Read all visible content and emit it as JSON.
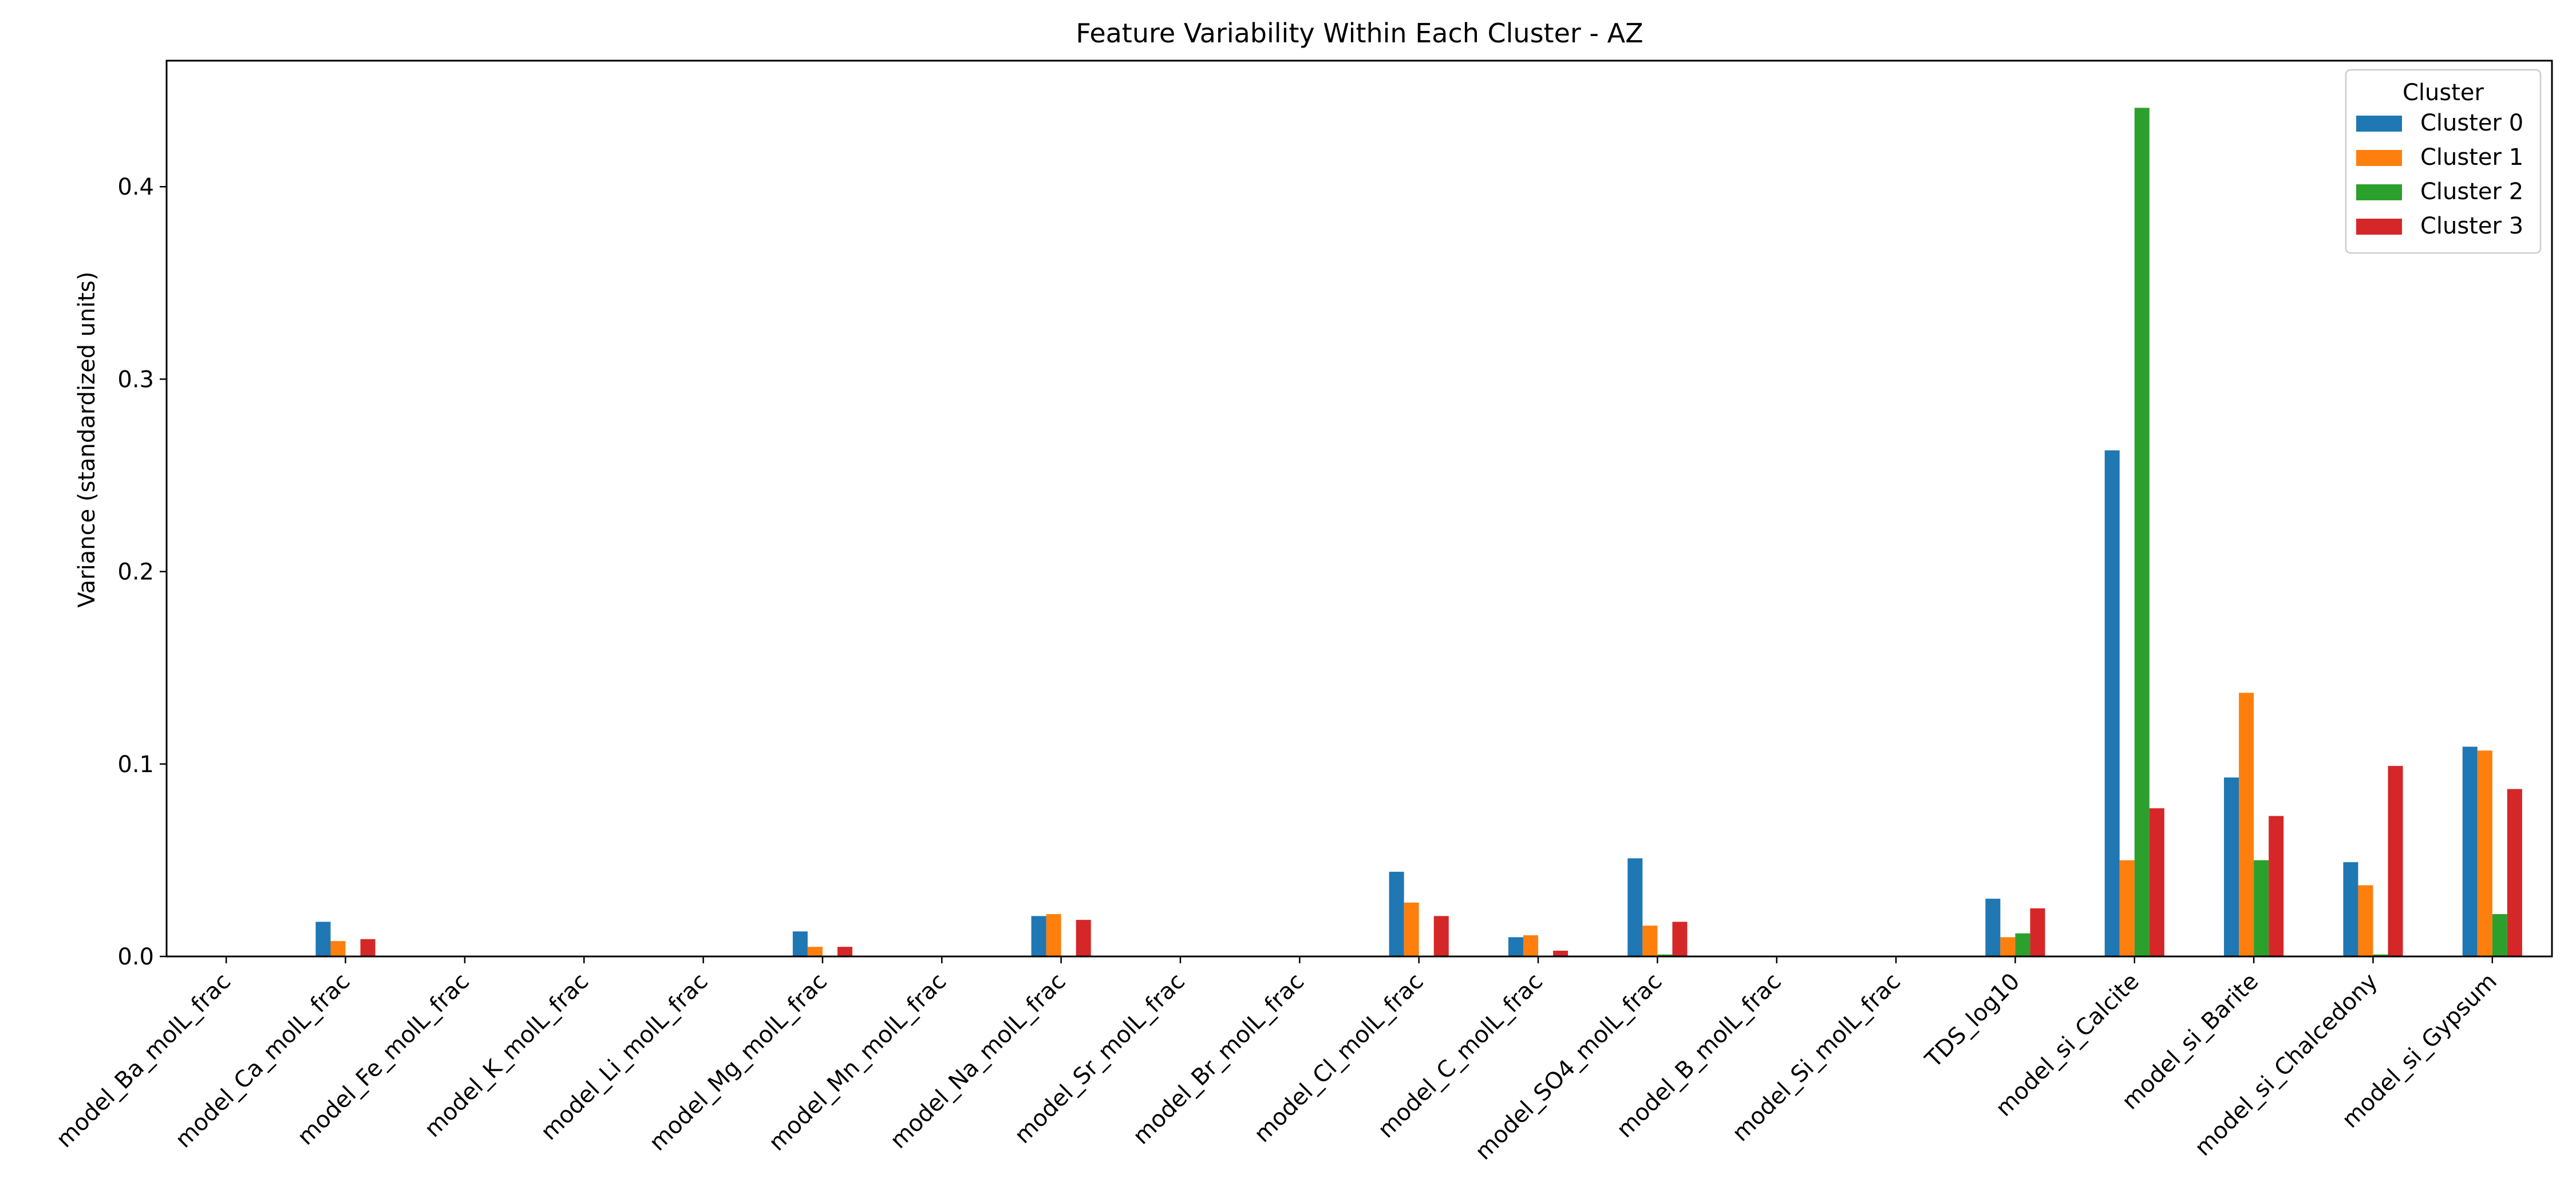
{
  "chart_data": {
    "type": "bar",
    "title": "Feature Variability Within Each Cluster - AZ",
    "xlabel": "",
    "ylabel": "Variance (standardized units)",
    "ylim": [
      0,
      0.4655
    ],
    "yticks": [
      0.0,
      0.1,
      0.2,
      0.3,
      0.4
    ],
    "ytick_labels": [
      "0.0",
      "0.1",
      "0.2",
      "0.3",
      "0.4"
    ],
    "grid": false,
    "legend": {
      "title": "Cluster",
      "placement": "top-right"
    },
    "categories": [
      "model_Ba_molL_frac",
      "model_Ca_molL_frac",
      "model_Fe_molL_frac",
      "model_K_molL_frac",
      "model_Li_molL_frac",
      "model_Mg_molL_frac",
      "model_Mn_molL_frac",
      "model_Na_molL_frac",
      "model_Sr_molL_frac",
      "model_Br_molL_frac",
      "model_Cl_molL_frac",
      "model_C_molL_frac",
      "model_SO4_molL_frac",
      "model_B_molL_frac",
      "model_Si_molL_frac",
      "TDS_log10",
      "model_si_Calcite",
      "model_si_Barite",
      "model_si_Chalcedony",
      "model_si_Gypsum"
    ],
    "series": [
      {
        "name": "Cluster 0",
        "color": "#1f77b4",
        "values": [
          0,
          0.018,
          0,
          0,
          0,
          0.013,
          0,
          0.021,
          0,
          0,
          0.044,
          0.01,
          0.051,
          0,
          0,
          0.03,
          0.263,
          0.093,
          0.049,
          0.109
        ]
      },
      {
        "name": "Cluster 1",
        "color": "#ff7f0e",
        "values": [
          0,
          0.008,
          0,
          0,
          0,
          0.005,
          0,
          0.022,
          0,
          0,
          0.028,
          0.011,
          0.016,
          0,
          0,
          0.01,
          0.05,
          0.137,
          0.037,
          0.107
        ]
      },
      {
        "name": "Cluster 2",
        "color": "#2ca02c",
        "values": [
          0,
          0,
          0,
          0,
          0,
          0,
          0,
          0,
          0,
          0,
          0,
          0,
          0.001,
          0,
          0,
          0.012,
          0.441,
          0.05,
          0.001,
          0.022
        ]
      },
      {
        "name": "Cluster 3",
        "color": "#d62728",
        "values": [
          0,
          0.009,
          0,
          0,
          0,
          0.005,
          0,
          0.019,
          0,
          0,
          0.021,
          0.003,
          0.018,
          0,
          0,
          0.025,
          0.077,
          0.073,
          0.099,
          0.087
        ]
      }
    ]
  }
}
